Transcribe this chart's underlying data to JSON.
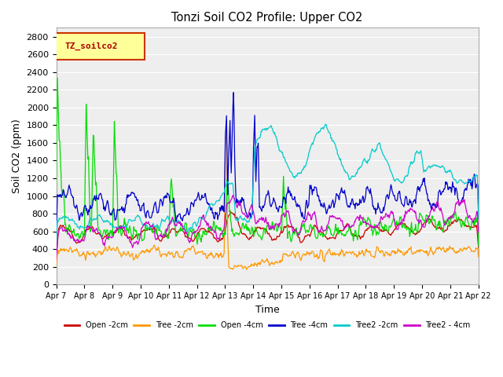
{
  "title": "Tonzi Soil CO2 Profile: Upper CO2",
  "xlabel": "Time",
  "ylabel": "Soil CO2 (ppm)",
  "ylim": [
    0,
    2900
  ],
  "yticks": [
    0,
    200,
    400,
    600,
    800,
    1000,
    1200,
    1400,
    1600,
    1800,
    2000,
    2200,
    2400,
    2600,
    2800
  ],
  "legend_label": "TZ_soilco2",
  "legend_box_facecolor": "#ffff99",
  "legend_box_edgecolor": "#cc3300",
  "legend_text_color": "#aa0000",
  "series": [
    {
      "label": "Open -2cm",
      "color": "#cc0000"
    },
    {
      "label": "Tree -2cm",
      "color": "#ff9900"
    },
    {
      "label": "Open -4cm",
      "color": "#00dd00"
    },
    {
      "label": "Tree -4cm",
      "color": "#0000cc"
    },
    {
      "label": "Tree2 -2cm",
      "color": "#00cccc"
    },
    {
      "label": "Tree2 - 4cm",
      "color": "#cc00cc"
    }
  ],
  "background_color": "#ffffff",
  "plot_bg_color": "#eeeeee",
  "grid_color": "#ffffff",
  "xtick_labels": [
    "Apr 7",
    "Apr 8",
    "Apr 9",
    "Apr 10",
    "Apr 11",
    "Apr 12",
    "Apr 13",
    "Apr 14",
    "Apr 15",
    "Apr 16",
    "Apr 17",
    "Apr 18",
    "Apr 19",
    "Apr 20",
    "Apr 21",
    "Apr 22"
  ]
}
